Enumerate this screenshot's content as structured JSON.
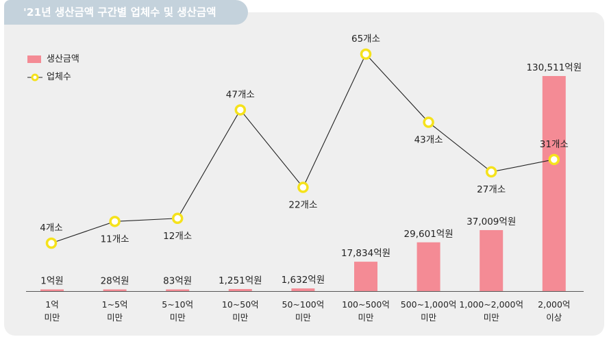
{
  "title": "'21년 생산금액 구간별 업체수 및 생산금액",
  "colors": {
    "bar": "#f48b95",
    "line": "#222222",
    "marker_fill": "#ffffff",
    "marker_ring": "#f5e21c",
    "panel": "#efefef",
    "tab": "#c4d2dc"
  },
  "legend": {
    "bar_label": "생산금액",
    "line_label": "업체수"
  },
  "chart_data": {
    "type": "bar",
    "categories": [
      "1억\n미만",
      "1~5억\n미만",
      "5~10억\n미만",
      "10~50억\n미만",
      "50~100억\n미만",
      "100~500억\n미만",
      "500~1,000억\n미만",
      "1,000~2,000억\n미만",
      "2,000억\n이상"
    ],
    "series": [
      {
        "name": "생산금액",
        "type": "bar",
        "values": [
          1,
          28,
          83,
          1251,
          1632,
          17834,
          29601,
          37009,
          130511
        ],
        "labels": [
          "1억원",
          "28억원",
          "83억원",
          "1,251억원",
          "1,632억원",
          "17,834억원",
          "29,601억원",
          "37,009억원",
          "130,511억원"
        ]
      },
      {
        "name": "업체수",
        "type": "line",
        "values": [
          4,
          11,
          12,
          47,
          22,
          65,
          43,
          27,
          31
        ],
        "labels": [
          "4개소",
          "11개소",
          "12개소",
          "47개소",
          "22개소",
          "65개소",
          "43개소",
          "27개소",
          "31개소"
        ]
      }
    ]
  }
}
